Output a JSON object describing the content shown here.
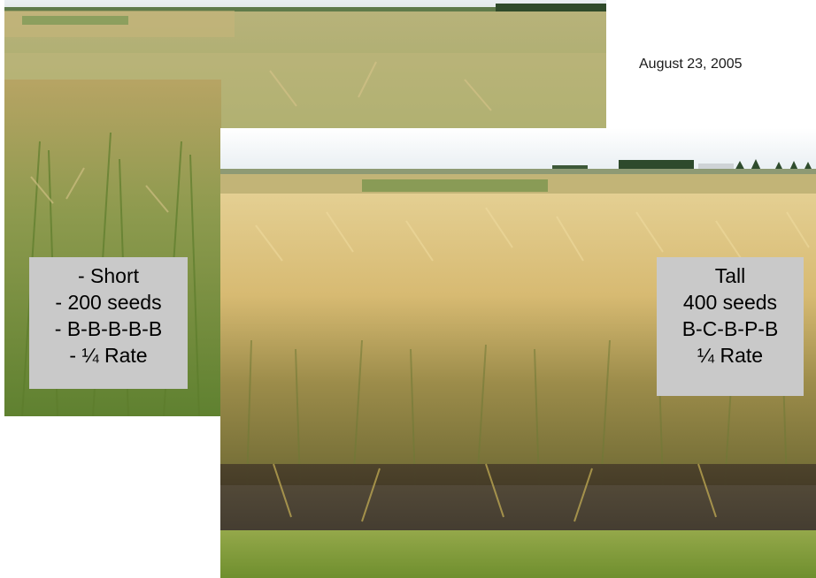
{
  "date": "August 23, 2005",
  "short_label": {
    "lines": [
      "- Short",
      "- 200 seeds",
      "- B-B-B-B-B",
      "- ¼ Rate"
    ]
  },
  "tall_label": {
    "lines": [
      "Tall",
      "400 seeds",
      "B-C-B-P-B",
      "¼ Rate"
    ]
  },
  "colors": {
    "sky": "#e8eef2",
    "green_field": "#8fa35a",
    "golden_barley": "#d9bf7a",
    "grass": "#7a9a3a",
    "soil": "#3d3424",
    "label_box": "#c9c9c9"
  }
}
